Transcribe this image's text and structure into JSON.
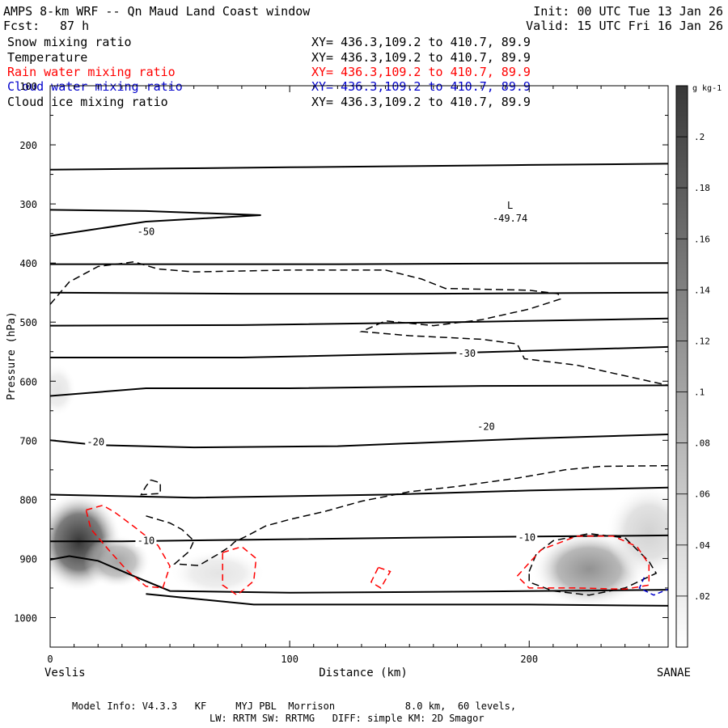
{
  "header": {
    "title": "AMPS 8-km WRF -- Qn Maud Land Coast window",
    "fcst_label": "Fcst:",
    "fcst_value": "87 h",
    "init": "Init: 00 UTC Tue 13 Jan 26",
    "valid": "Valid: 15 UTC Fri 16 Jan 26"
  },
  "fields": [
    {
      "name": "Snow mixing ratio",
      "color": "#000000",
      "xy": "XY= 436.3,109.2 to 410.7, 89.9"
    },
    {
      "name": "Temperature",
      "color": "#000000",
      "xy": "XY= 436.3,109.2 to 410.7, 89.9"
    },
    {
      "name": "Rain water mixing ratio",
      "color": "#ff0000",
      "xy": "XY= 436.3,109.2 to 410.7, 89.9"
    },
    {
      "name": "Cloud water mixing ratio",
      "color": "#0000cc",
      "xy": "XY= 436.3,109.2 to 410.7, 89.9"
    },
    {
      "name": "Cloud ice mixing ratio",
      "color": "#000000",
      "xy": "XY= 436.3,109.2 to 410.7, 89.9"
    }
  ],
  "footer": {
    "line1": "Model Info: V4.3.3   KF     MYJ PBL  Morrison            8.0 km,  60 levels,",
    "line2": "LW: RRTM SW: RRTMG   DIFF: simple KM: 2D Smagor"
  },
  "chart_data": {
    "type": "cross-section",
    "xlabel": "Distance (km)",
    "ylabel": "Pressure (hPa)",
    "xlim": [
      0,
      258
    ],
    "ylim": [
      1050,
      100
    ],
    "x_ticks": [
      0,
      100,
      200
    ],
    "y_ticks": [
      100,
      200,
      300,
      400,
      500,
      600,
      700,
      800,
      900,
      1000
    ],
    "x_endpoints": {
      "left": "Veslis",
      "right": "SANAE"
    },
    "colorbar": {
      "unit": "g kg-1",
      "ticks": [
        ".02",
        ".04",
        ".06",
        ".08",
        ".1",
        ".12",
        ".14",
        ".16",
        ".18",
        ".2"
      ],
      "range": [
        0,
        0.22
      ]
    },
    "low_marker": {
      "label": "L",
      "value": "-49.74",
      "x_km": 192,
      "p_hpa": 316
    },
    "temperature_labels": [
      {
        "text": "-50",
        "x_km": 40,
        "p_hpa": 350
      },
      {
        "text": "-30",
        "x_km": 174,
        "p_hpa": 556
      },
      {
        "text": "-20",
        "x_km": 182,
        "p_hpa": 680
      },
      {
        "text": "-20",
        "x_km": 19,
        "p_hpa": 706
      },
      {
        "text": "-10",
        "x_km": 199,
        "p_hpa": 867
      },
      {
        "text": "-10",
        "x_km": 40,
        "p_hpa": 873
      }
    ],
    "isotherms": [
      [
        [
          0,
          242
        ],
        [
          50,
          240
        ],
        [
          100,
          238
        ],
        [
          150,
          236
        ],
        [
          200,
          234
        ],
        [
          258,
          232
        ]
      ],
      [
        [
          0,
          310
        ],
        [
          40,
          312
        ],
        [
          88,
          319
        ],
        [
          40,
          330
        ],
        [
          15,
          345
        ],
        [
          0,
          354
        ]
      ],
      [
        [
          0,
          402
        ],
        [
          60,
          402
        ],
        [
          120,
          402
        ],
        [
          180,
          401
        ],
        [
          258,
          400
        ]
      ],
      [
        [
          0,
          450
        ],
        [
          80,
          452
        ],
        [
          160,
          452
        ],
        [
          258,
          450
        ]
      ],
      [
        [
          0,
          506
        ],
        [
          80,
          505
        ],
        [
          170,
          500
        ],
        [
          258,
          494
        ]
      ],
      [
        [
          0,
          560
        ],
        [
          80,
          560
        ],
        [
          170,
          552
        ],
        [
          258,
          542
        ]
      ],
      [
        [
          0,
          625
        ],
        [
          40,
          612
        ],
        [
          100,
          612
        ],
        [
          180,
          608
        ],
        [
          258,
          607
        ]
      ],
      [
        [
          0,
          700
        ],
        [
          20,
          708
        ],
        [
          60,
          712
        ],
        [
          120,
          710
        ],
        [
          200,
          697
        ],
        [
          258,
          690
        ]
      ],
      [
        [
          0,
          792
        ],
        [
          60,
          797
        ],
        [
          140,
          792
        ],
        [
          200,
          785
        ],
        [
          258,
          780
        ]
      ],
      [
        [
          0,
          871
        ],
        [
          30,
          871
        ],
        [
          90,
          868
        ],
        [
          170,
          864
        ],
        [
          258,
          861
        ]
      ],
      [
        [
          0,
          902
        ],
        [
          8,
          896
        ],
        [
          20,
          904
        ],
        [
          35,
          930
        ],
        [
          50,
          955
        ],
        [
          100,
          958
        ],
        [
          180,
          956
        ],
        [
          258,
          953
        ]
      ],
      [
        [
          40,
          960
        ],
        [
          60,
          968
        ],
        [
          85,
          978
        ],
        [
          140,
          978
        ],
        [
          200,
          978
        ],
        [
          258,
          980
        ]
      ]
    ],
    "snow_contours": [
      [
        [
          0,
          470
        ],
        [
          8,
          432
        ],
        [
          20,
          406
        ],
        [
          35,
          398
        ],
        [
          45,
          410
        ],
        [
          60,
          415
        ],
        [
          100,
          412
        ],
        [
          140,
          412
        ],
        [
          155,
          427
        ],
        [
          165,
          443
        ],
        [
          200,
          446
        ],
        [
          212,
          452
        ],
        [
          213,
          461
        ],
        [
          200,
          478
        ],
        [
          180,
          496
        ],
        [
          160,
          506
        ],
        [
          140,
          498
        ],
        [
          130,
          516
        ],
        [
          150,
          523
        ],
        [
          180,
          529
        ],
        [
          195,
          537
        ],
        [
          198,
          562
        ],
        [
          220,
          573
        ],
        [
          258,
          607
        ]
      ],
      [
        [
          258,
          743
        ],
        [
          230,
          744
        ],
        [
          215,
          750
        ],
        [
          195,
          764
        ],
        [
          170,
          778
        ],
        [
          150,
          787
        ],
        [
          130,
          803
        ],
        [
          115,
          820
        ],
        [
          100,
          834
        ],
        [
          90,
          845
        ],
        [
          83,
          860
        ],
        [
          77,
          872
        ],
        [
          75,
          880
        ],
        [
          70,
          893
        ],
        [
          62,
          912
        ],
        [
          52,
          909
        ],
        [
          58,
          888
        ],
        [
          60,
          870
        ],
        [
          55,
          851
        ],
        [
          50,
          840
        ],
        [
          40,
          828
        ]
      ],
      [
        [
          42,
          767
        ],
        [
          46,
          772
        ],
        [
          46,
          790
        ],
        [
          38,
          792
        ],
        [
          40,
          778
        ],
        [
          42,
          767
        ]
      ],
      [
        [
          200,
          922
        ],
        [
          203,
          892
        ],
        [
          210,
          870
        ],
        [
          225,
          858
        ],
        [
          240,
          865
        ],
        [
          245,
          885
        ],
        [
          250,
          905
        ],
        [
          253,
          925
        ],
        [
          240,
          950
        ],
        [
          225,
          962
        ],
        [
          210,
          955
        ],
        [
          200,
          940
        ],
        [
          200,
          922
        ]
      ]
    ],
    "rain_contours": [
      [
        [
          15,
          818
        ],
        [
          22,
          810
        ],
        [
          27,
          822
        ],
        [
          35,
          846
        ],
        [
          45,
          878
        ],
        [
          50,
          913
        ],
        [
          47,
          950
        ],
        [
          40,
          947
        ],
        [
          32,
          920
        ],
        [
          25,
          888
        ],
        [
          17,
          850
        ],
        [
          15,
          818
        ]
      ],
      [
        [
          72,
          890
        ],
        [
          80,
          880
        ],
        [
          86,
          900
        ],
        [
          85,
          938
        ],
        [
          78,
          962
        ],
        [
          72,
          945
        ],
        [
          72,
          890
        ]
      ],
      [
        [
          137,
          915
        ],
        [
          142,
          922
        ],
        [
          138,
          950
        ],
        [
          134,
          940
        ],
        [
          137,
          915
        ]
      ],
      [
        [
          195,
          930
        ],
        [
          205,
          885
        ],
        [
          220,
          862
        ],
        [
          235,
          862
        ],
        [
          245,
          880
        ],
        [
          250,
          910
        ],
        [
          250,
          945
        ],
        [
          240,
          952
        ],
        [
          220,
          950
        ],
        [
          200,
          950
        ],
        [
          195,
          930
        ]
      ]
    ],
    "cloud_water_contours": [
      [
        [
          248,
          932
        ],
        [
          246,
          950
        ],
        [
          252,
          962
        ],
        [
          258,
          952
        ]
      ]
    ],
    "ice_shading": [
      {
        "x_km": 12,
        "p_hpa": 872,
        "rx_km": 18,
        "rp_hpa": 85,
        "max": 0.22
      },
      {
        "x_km": 28,
        "p_hpa": 905,
        "rx_km": 14,
        "rp_hpa": 45,
        "max": 0.1
      },
      {
        "x_km": 225,
        "p_hpa": 918,
        "rx_km": 24,
        "rp_hpa": 65,
        "max": 0.12
      },
      {
        "x_km": 250,
        "p_hpa": 855,
        "rx_km": 18,
        "rp_hpa": 80,
        "max": 0.05
      },
      {
        "x_km": 3,
        "p_hpa": 615,
        "rx_km": 8,
        "rp_hpa": 45,
        "max": 0.03
      },
      {
        "x_km": 70,
        "p_hpa": 925,
        "rx_km": 20,
        "rp_hpa": 40,
        "max": 0.03
      }
    ]
  }
}
